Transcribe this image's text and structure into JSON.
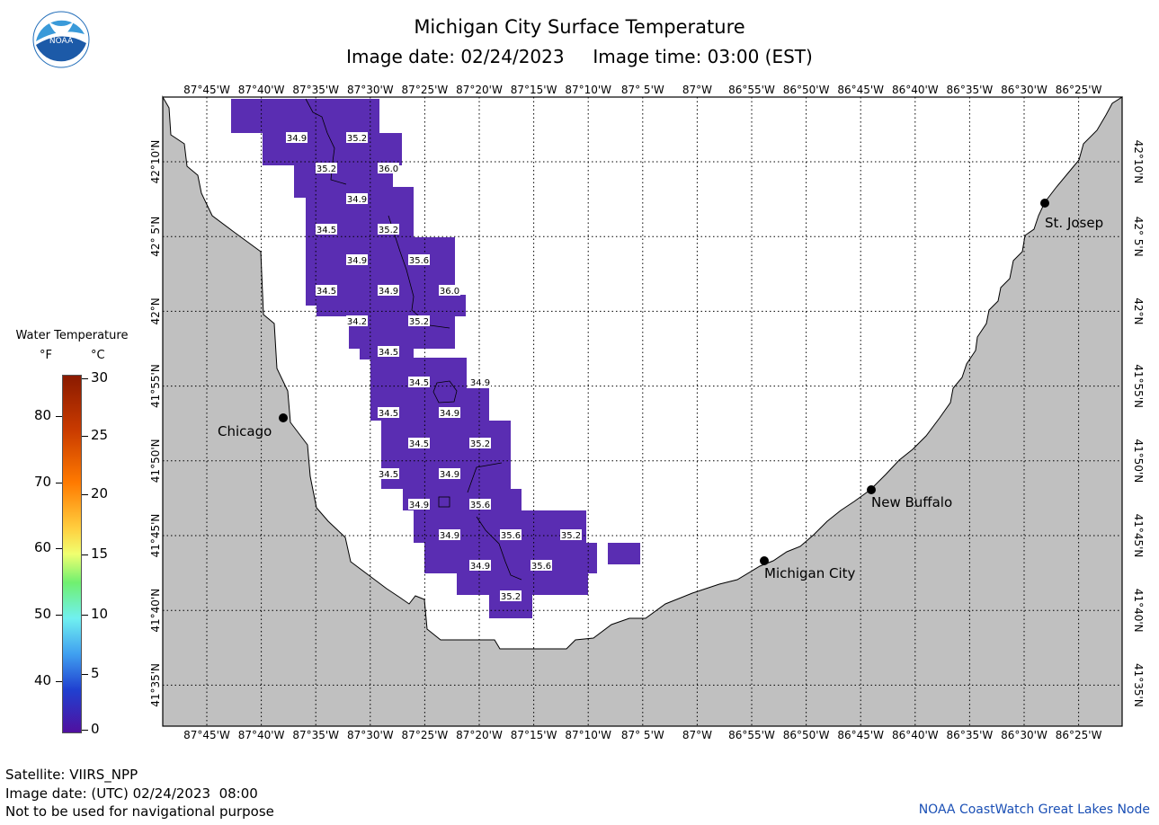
{
  "title": "Michigan City Surface Temperature",
  "subtitle": {
    "image_date": "Image date: 02/24/2023",
    "image_time": "Image time: 03:00 (EST)"
  },
  "logo_text": "NOAA",
  "longitude_labels": [
    "87°45'W",
    "87°40'W",
    "87°35'W",
    "87°30'W",
    "87°25'W",
    "87°20'W",
    "87°15'W",
    "87°10'W",
    "87° 5'W",
    "87°W",
    "86°55'W",
    "86°50'W",
    "86°45'W",
    "86°40'W",
    "86°35'W",
    "86°30'W",
    "86°25'W"
  ],
  "latitude_labels": [
    "42°10'N",
    "42° 5'N",
    "42°N",
    "41°55'N",
    "41°50'N",
    "41°45'N",
    "41°40'N",
    "41°35'N"
  ],
  "cities": [
    {
      "name": "Chicago"
    },
    {
      "name": "St. Josep"
    },
    {
      "name": "New Buffalo"
    },
    {
      "name": "Michigan City"
    }
  ],
  "temperature_labels": [
    "34.9",
    "35.2",
    "35.2",
    "36.0",
    "34.9",
    "34.5",
    "35.2",
    "34.9",
    "35.6",
    "34.5",
    "34.9",
    "36.0",
    "34.2",
    "35.2",
    "34.5",
    "34.5",
    "34.9",
    "34.5",
    "34.9",
    "34.5",
    "35.2",
    "34.5",
    "34.9",
    "34.9",
    "35.6",
    "34.9",
    "35.6",
    "35.2",
    "34.9",
    "35.6",
    "35.2"
  ],
  "legend": {
    "title": "Water Temperature",
    "unit_f": "°F",
    "unit_c": "°C",
    "f_ticks": [
      "80",
      "70",
      "60",
      "50",
      "40"
    ],
    "c_ticks": [
      "30",
      "25",
      "20",
      "15",
      "10",
      "5",
      "0"
    ]
  },
  "colors": {
    "land": "#c0c0c0",
    "water": "#ffffff",
    "sst_cells": "#5a2db2",
    "credit": "#1a4fb5"
  },
  "footer": {
    "satellite": "Satellite: VIIRS_NPP",
    "utc_date": "Image date: (UTC) 02/24/2023  08:00",
    "disclaimer": "Not to be used for navigational purpose"
  },
  "credit": "NOAA CoastWatch Great Lakes Node"
}
